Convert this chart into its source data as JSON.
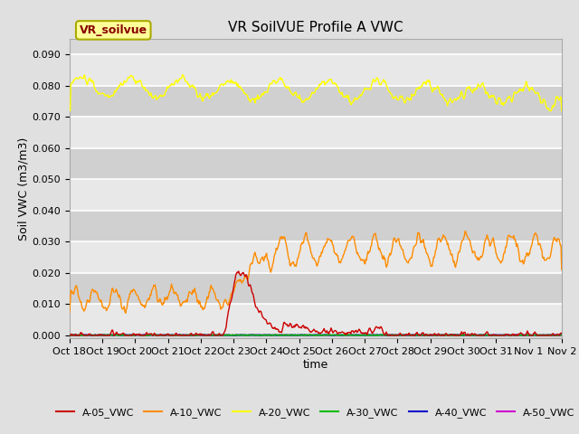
{
  "title": "VR SoilVUE Profile A VWC",
  "xlabel": "time",
  "ylabel": "Soil VWC (m3/m3)",
  "ylim": [
    -0.001,
    0.095
  ],
  "background_color": "#e0e0e0",
  "plot_bg_color": "#d8d8d8",
  "grid_color": "#f0f0f0",
  "xtick_labels": [
    "Oct 18",
    "Oct 19",
    "Oct 20",
    "Oct 21",
    "Oct 22",
    "Oct 23",
    "Oct 24",
    "Oct 25",
    "Oct 26",
    "Oct 27",
    "Oct 28",
    "Oct 29",
    "Oct 30",
    "Oct 31",
    "Nov 1",
    "Nov 2"
  ],
  "series": {
    "A-05_VWC": {
      "color": "#cc0000",
      "lw": 1.0
    },
    "A-10_VWC": {
      "color": "#ff8c00",
      "lw": 1.0
    },
    "A-20_VWC": {
      "color": "#ffff00",
      "lw": 1.0
    },
    "A-30_VWC": {
      "color": "#00bb00",
      "lw": 1.2
    },
    "A-40_VWC": {
      "color": "#0000cc",
      "lw": 1.2
    },
    "A-50_VWC": {
      "color": "#cc00cc",
      "lw": 1.2
    }
  },
  "legend_box_facecolor": "#ffff99",
  "legend_box_edgecolor": "#aaaa00",
  "legend_label": "VR_soilvue",
  "legend_label_color": "#880000",
  "title_fontsize": 11,
  "axis_label_fontsize": 9,
  "tick_fontsize": 8,
  "legend_fontsize": 8,
  "yticks": [
    0.0,
    0.01,
    0.02,
    0.03,
    0.04,
    0.05,
    0.06,
    0.07,
    0.08,
    0.09
  ]
}
